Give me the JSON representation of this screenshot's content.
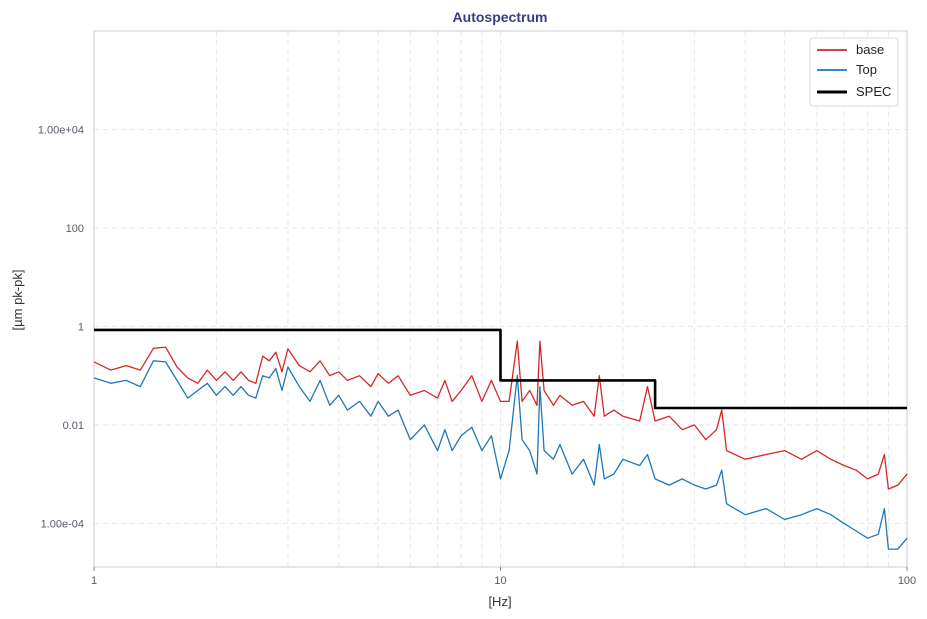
{
  "chart_data": {
    "type": "line",
    "title": "Autospectrum",
    "xlabel": "[Hz]",
    "ylabel": "[µm pk-pk]",
    "x_scale": "log",
    "y_scale": "log",
    "xlim": [
      1,
      100
    ],
    "ylim": [
      1.3e-05,
      1000000
    ],
    "x_ticks": [
      {
        "value": 1,
        "label": "1"
      },
      {
        "value": 10,
        "label": "10"
      },
      {
        "value": 100,
        "label": "100"
      }
    ],
    "y_ticks": [
      {
        "value": 0.0001,
        "label": "1.00e-04"
      },
      {
        "value": 0.01,
        "label": "0.01"
      },
      {
        "value": 1,
        "label": "1"
      },
      {
        "value": 100,
        "label": "100"
      },
      {
        "value": 10000,
        "label": "1.00e+04"
      }
    ],
    "grid": true,
    "legend_position": "top-right",
    "series": [
      {
        "name": "base",
        "color": "#d62728",
        "points": [
          [
            1.0,
            0.19
          ],
          [
            1.1,
            0.13
          ],
          [
            1.2,
            0.16
          ],
          [
            1.3,
            0.13
          ],
          [
            1.4,
            0.36
          ],
          [
            1.5,
            0.38
          ],
          [
            1.6,
            0.15
          ],
          [
            1.7,
            0.09
          ],
          [
            1.8,
            0.07
          ],
          [
            1.9,
            0.13
          ],
          [
            2.0,
            0.08
          ],
          [
            2.1,
            0.12
          ],
          [
            2.2,
            0.08
          ],
          [
            2.3,
            0.12
          ],
          [
            2.4,
            0.08
          ],
          [
            2.5,
            0.07
          ],
          [
            2.6,
            0.25
          ],
          [
            2.7,
            0.2
          ],
          [
            2.8,
            0.3
          ],
          [
            2.9,
            0.12
          ],
          [
            3.0,
            0.35
          ],
          [
            3.2,
            0.16
          ],
          [
            3.4,
            0.12
          ],
          [
            3.6,
            0.2
          ],
          [
            3.8,
            0.1
          ],
          [
            4.0,
            0.12
          ],
          [
            4.2,
            0.08
          ],
          [
            4.5,
            0.1
          ],
          [
            4.8,
            0.06
          ],
          [
            5.0,
            0.11
          ],
          [
            5.3,
            0.07
          ],
          [
            5.6,
            0.1
          ],
          [
            6.0,
            0.04
          ],
          [
            6.5,
            0.05
          ],
          [
            7.0,
            0.035
          ],
          [
            7.3,
            0.08
          ],
          [
            7.6,
            0.03
          ],
          [
            8.0,
            0.05
          ],
          [
            8.5,
            0.1
          ],
          [
            9.0,
            0.03
          ],
          [
            9.5,
            0.08
          ],
          [
            10.0,
            0.03
          ],
          [
            10.5,
            0.03
          ],
          [
            11.0,
            0.5
          ],
          [
            11.3,
            0.03
          ],
          [
            11.8,
            0.05
          ],
          [
            12.3,
            0.025
          ],
          [
            12.5,
            0.5
          ],
          [
            12.8,
            0.05
          ],
          [
            13.5,
            0.025
          ],
          [
            14.0,
            0.04
          ],
          [
            15.0,
            0.025
          ],
          [
            16.0,
            0.03
          ],
          [
            17.0,
            0.015
          ],
          [
            17.5,
            0.1
          ],
          [
            18.0,
            0.015
          ],
          [
            19.0,
            0.02
          ],
          [
            20.0,
            0.015
          ],
          [
            22.0,
            0.012
          ],
          [
            23.0,
            0.06
          ],
          [
            24.0,
            0.012
          ],
          [
            26.0,
            0.015
          ],
          [
            28.0,
            0.008
          ],
          [
            30.0,
            0.01
          ],
          [
            32.0,
            0.005
          ],
          [
            34.0,
            0.008
          ],
          [
            35.0,
            0.02
          ],
          [
            36.0,
            0.003
          ],
          [
            40.0,
            0.002
          ],
          [
            45.0,
            0.0025
          ],
          [
            50.0,
            0.003
          ],
          [
            55.0,
            0.002
          ],
          [
            60.0,
            0.003
          ],
          [
            65.0,
            0.002
          ],
          [
            70.0,
            0.0015
          ],
          [
            75.0,
            0.0012
          ],
          [
            80.0,
            0.0008
          ],
          [
            85.0,
            0.001
          ],
          [
            88.0,
            0.0025
          ],
          [
            90.0,
            0.0005
          ],
          [
            95.0,
            0.0006
          ],
          [
            100.0,
            0.001
          ]
        ]
      },
      {
        "name": "Top",
        "color": "#1f77b4",
        "points": [
          [
            1.0,
            0.09
          ],
          [
            1.1,
            0.07
          ],
          [
            1.2,
            0.08
          ],
          [
            1.3,
            0.06
          ],
          [
            1.4,
            0.2
          ],
          [
            1.5,
            0.19
          ],
          [
            1.6,
            0.08
          ],
          [
            1.7,
            0.035
          ],
          [
            1.8,
            0.05
          ],
          [
            1.9,
            0.07
          ],
          [
            2.0,
            0.04
          ],
          [
            2.1,
            0.06
          ],
          [
            2.2,
            0.04
          ],
          [
            2.3,
            0.06
          ],
          [
            2.4,
            0.04
          ],
          [
            2.5,
            0.035
          ],
          [
            2.6,
            0.1
          ],
          [
            2.7,
            0.09
          ],
          [
            2.8,
            0.14
          ],
          [
            2.9,
            0.05
          ],
          [
            3.0,
            0.15
          ],
          [
            3.2,
            0.06
          ],
          [
            3.4,
            0.03
          ],
          [
            3.6,
            0.08
          ],
          [
            3.8,
            0.025
          ],
          [
            4.0,
            0.04
          ],
          [
            4.2,
            0.02
          ],
          [
            4.5,
            0.03
          ],
          [
            4.8,
            0.015
          ],
          [
            5.0,
            0.03
          ],
          [
            5.3,
            0.015
          ],
          [
            5.6,
            0.02
          ],
          [
            6.0,
            0.005
          ],
          [
            6.5,
            0.01
          ],
          [
            7.0,
            0.003
          ],
          [
            7.3,
            0.008
          ],
          [
            7.6,
            0.003
          ],
          [
            8.0,
            0.006
          ],
          [
            8.5,
            0.009
          ],
          [
            9.0,
            0.003
          ],
          [
            9.5,
            0.006
          ],
          [
            10.0,
            0.0008
          ],
          [
            10.5,
            0.003
          ],
          [
            11.0,
            0.1
          ],
          [
            11.3,
            0.005
          ],
          [
            11.8,
            0.003
          ],
          [
            12.3,
            0.001
          ],
          [
            12.5,
            0.06
          ],
          [
            12.8,
            0.003
          ],
          [
            13.5,
            0.002
          ],
          [
            14.0,
            0.004
          ],
          [
            15.0,
            0.001
          ],
          [
            16.0,
            0.002
          ],
          [
            17.0,
            0.0006
          ],
          [
            17.5,
            0.004
          ],
          [
            18.0,
            0.0008
          ],
          [
            19.0,
            0.001
          ],
          [
            20.0,
            0.002
          ],
          [
            22.0,
            0.0015
          ],
          [
            23.0,
            0.0025
          ],
          [
            24.0,
            0.0008
          ],
          [
            26.0,
            0.0006
          ],
          [
            28.0,
            0.0008
          ],
          [
            30.0,
            0.0006
          ],
          [
            32.0,
            0.0005
          ],
          [
            34.0,
            0.0006
          ],
          [
            35.0,
            0.0012
          ],
          [
            36.0,
            0.00025
          ],
          [
            40.0,
            0.00015
          ],
          [
            45.0,
            0.0002
          ],
          [
            50.0,
            0.00012
          ],
          [
            55.0,
            0.00015
          ],
          [
            60.0,
            0.0002
          ],
          [
            65.0,
            0.00015
          ],
          [
            70.0,
            0.0001
          ],
          [
            75.0,
            7e-05
          ],
          [
            80.0,
            5e-05
          ],
          [
            85.0,
            6e-05
          ],
          [
            88.0,
            0.0002
          ],
          [
            90.0,
            3e-05
          ],
          [
            95.0,
            3e-05
          ],
          [
            100.0,
            5e-05
          ]
        ]
      },
      {
        "name": "SPEC",
        "color": "#000000",
        "step": true,
        "points": [
          [
            1,
            0.85
          ],
          [
            10,
            0.85
          ],
          [
            10,
            0.08
          ],
          [
            24,
            0.08
          ],
          [
            24,
            0.022
          ],
          [
            100,
            0.022
          ]
        ]
      }
    ]
  }
}
